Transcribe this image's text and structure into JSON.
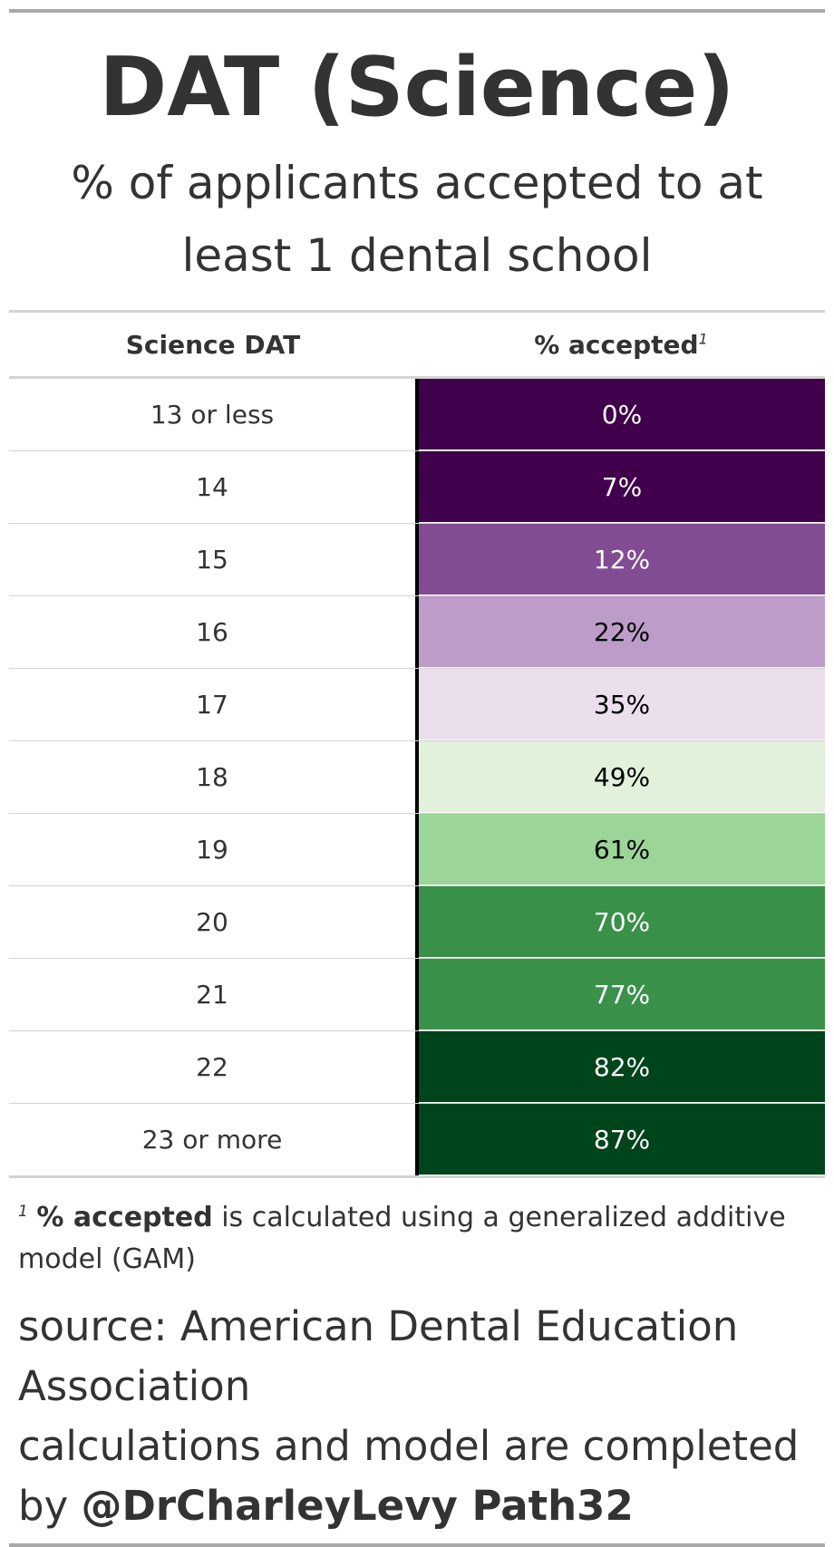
{
  "chart_data": {
    "type": "table",
    "title": "DAT (Science)",
    "subtitle": "% of applicants accepted to at least 1 dental school",
    "columns": [
      "Science DAT",
      "% accepted"
    ],
    "column_footnote_mark": "1",
    "rows": [
      {
        "score": "13 or less",
        "accepted": "0%",
        "value": 0,
        "color": "#40004b",
        "text_color": "#ffffff"
      },
      {
        "score": "14",
        "accepted": "7%",
        "value": 7,
        "color": "#40004b",
        "text_color": "#ffffff"
      },
      {
        "score": "15",
        "accepted": "12%",
        "value": 12,
        "color": "#824c93",
        "text_color": "#ffffff"
      },
      {
        "score": "16",
        "accepted": "22%",
        "value": 22,
        "color": "#bd9cca",
        "text_color": "#000000"
      },
      {
        "score": "17",
        "accepted": "35%",
        "value": 35,
        "color": "#ebdeed",
        "text_color": "#000000"
      },
      {
        "score": "18",
        "accepted": "49%",
        "value": 49,
        "color": "#e1f1dc",
        "text_color": "#000000"
      },
      {
        "score": "19",
        "accepted": "61%",
        "value": 61,
        "color": "#9bd597",
        "text_color": "#000000"
      },
      {
        "score": "20",
        "accepted": "70%",
        "value": 70,
        "color": "#399048",
        "text_color": "#ffffff"
      },
      {
        "score": "21",
        "accepted": "77%",
        "value": 77,
        "color": "#3a924a",
        "text_color": "#ffffff"
      },
      {
        "score": "22",
        "accepted": "82%",
        "value": 82,
        "color": "#00441b",
        "text_color": "#ffffff"
      },
      {
        "score": "23 or more",
        "accepted": "87%",
        "value": 87,
        "color": "#00441b",
        "text_color": "#ffffff"
      }
    ]
  },
  "footnote": {
    "mark": "1",
    "bold_part": "% accepted",
    "rest": " is calculated using a generalized additive model (GAM)"
  },
  "source": {
    "line1": "source: American Dental Education Association",
    "line2_prefix": "calculations and model are completed by ",
    "line2_bold": "@DrCharleyLevy Path32"
  }
}
